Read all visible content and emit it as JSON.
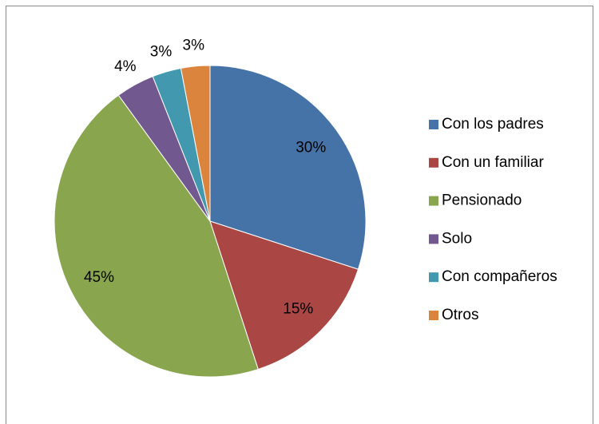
{
  "chart_data": {
    "type": "pie",
    "categories": [
      "Con los padres",
      "Con un familiar",
      "Pensionado",
      "Solo",
      "Con compañeros",
      "Otros"
    ],
    "values": [
      30,
      15,
      45,
      4,
      3,
      3
    ],
    "value_labels": [
      "30%",
      "15%",
      "45%",
      "4%",
      "3%",
      "3%"
    ],
    "colors": [
      "#4572a7",
      "#aa4643",
      "#89a54e",
      "#71588f",
      "#4198af",
      "#db843d"
    ],
    "legend": "right"
  }
}
